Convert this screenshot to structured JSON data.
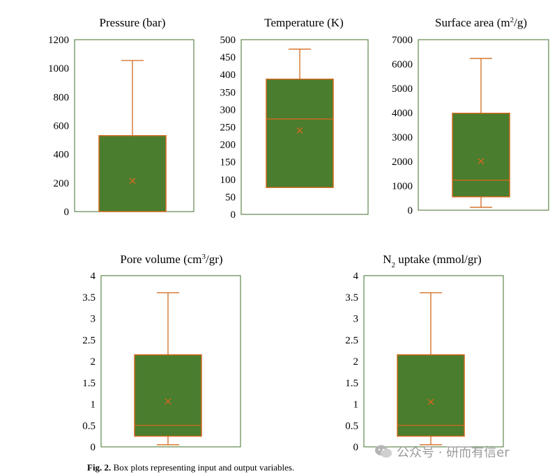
{
  "colors": {
    "box_fill": "#4a7d2e",
    "box_stroke": "#d2691e",
    "frame": "#3f6f2a"
  },
  "chart_data": [
    {
      "type": "box",
      "title_parts": [
        {
          "text": "Pressure (bar)"
        }
      ],
      "ylim": [
        0,
        1200
      ],
      "yticks": [
        0,
        200,
        400,
        600,
        800,
        1000,
        1200
      ],
      "min": 0,
      "q1": 0,
      "median": 0,
      "q3": 530,
      "max": 1055,
      "mean": 215
    },
    {
      "type": "box",
      "title_parts": [
        {
          "text": "Temperature (K)"
        }
      ],
      "ylim": [
        0,
        500
      ],
      "yticks": [
        0,
        50,
        100,
        150,
        200,
        250,
        300,
        350,
        400,
        450,
        500
      ],
      "min": 77,
      "q1": 77,
      "median": 273,
      "q3": 387,
      "max": 473,
      "mean": 240
    },
    {
      "type": "box",
      "title_parts": [
        {
          "text": "Surface area (m"
        },
        {
          "text": "2",
          "sup": true
        },
        {
          "text": "/g)"
        }
      ],
      "ylim": [
        0,
        7000
      ],
      "yticks": [
        0,
        1000,
        2000,
        3000,
        4000,
        5000,
        6000,
        7000
      ],
      "min": 120,
      "q1": 550,
      "median": 1230,
      "q3": 3980,
      "max": 6230,
      "mean": 2010
    },
    {
      "type": "box",
      "title_parts": [
        {
          "text": "Pore volume (cm"
        },
        {
          "text": "3",
          "sup": true
        },
        {
          "text": "/gr)"
        }
      ],
      "ylim": [
        0,
        4
      ],
      "yticks": [
        0,
        0.5,
        1,
        1.5,
        2,
        2.5,
        3,
        3.5,
        4
      ],
      "min": 0.05,
      "q1": 0.25,
      "median": 0.5,
      "q3": 2.15,
      "max": 3.6,
      "mean": 1.06
    },
    {
      "type": "box",
      "title_parts": [
        {
          "text": "N"
        },
        {
          "text": "2",
          "sub": true
        },
        {
          "text": " uptake (mmol/gr)"
        }
      ],
      "ylim": [
        0,
        4
      ],
      "yticks": [
        0,
        0.5,
        1,
        1.5,
        2,
        2.5,
        3,
        3.5,
        4
      ],
      "min": 0.05,
      "q1": 0.25,
      "median": 0.5,
      "q3": 2.15,
      "max": 3.6,
      "mean": 1.05
    }
  ],
  "caption": {
    "label": "Fig. 2.",
    "text": "Box plots representing input and output variables."
  },
  "watermark": {
    "text": "公众号 · 研而有信er"
  }
}
